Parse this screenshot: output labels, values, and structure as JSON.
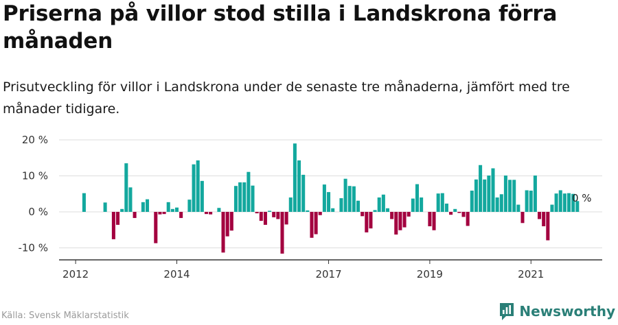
{
  "title": "Priserna på villor stod stilla i Landskrona förra månaden",
  "subtitle": "Prisutveckling för villor i Landskrona under de senaste tre månaderna, jämfört med tre månader tidigare.",
  "source": "Källa: Svensk Mäklarstatistik",
  "brand": "Newsworthy",
  "colors": {
    "positive": "#13a89e",
    "negative": "#a3003f",
    "grid": "#dddddd",
    "axis": "#333333",
    "brand": "#2a7f77"
  },
  "chart_data": {
    "type": "bar",
    "title": "Priserna på villor stod stilla i Landskrona förra månaden",
    "xlabel": "",
    "ylabel": "",
    "unit": "%",
    "start": "2011-12",
    "ylim": [
      -12,
      21
    ],
    "yticks": [
      20,
      10,
      0,
      -10
    ],
    "ytick_labels": [
      "20 %",
      "10 %",
      "0 %",
      "-10 %"
    ],
    "xticks": [
      "2012",
      "2014",
      "2017",
      "2019",
      "2021"
    ],
    "end_label": "0 %",
    "values": [
      0,
      0,
      0,
      5.2,
      0,
      0,
      0,
      0,
      2.6,
      0,
      -7.6,
      -3.6,
      0.8,
      13.5,
      6.8,
      -1.7,
      0,
      2.7,
      3.5,
      0,
      -8.7,
      -0.7,
      -0.6,
      2.7,
      0.8,
      1.2,
      -1.7,
      0,
      3.4,
      13.2,
      14.3,
      8.6,
      -0.6,
      -0.7,
      0,
      1.1,
      -11.3,
      -6.8,
      -5.2,
      7.2,
      8.2,
      8.2,
      11.1,
      7.3,
      -0.4,
      -2.5,
      -3.6,
      0.3,
      -1.5,
      -2.0,
      -11.6,
      -3.5,
      4.0,
      19.0,
      14.3,
      10.3,
      0.4,
      -7.2,
      -6.2,
      -0.9,
      7.6,
      5.5,
      1.0,
      0,
      3.8,
      9.2,
      7.2,
      7.1,
      3.1,
      -1.2,
      -5.7,
      -4.6,
      0.5,
      4.0,
      4.8,
      1.0,
      -2.0,
      -6.3,
      -5.1,
      -4.3,
      -1.3,
      3.7,
      7.7,
      4.0,
      0,
      -4.0,
      -5.1,
      5.1,
      5.2,
      2.3,
      -0.8,
      0.8,
      -0.3,
      -1.4,
      -3.9,
      5.9,
      9.0,
      13.0,
      9.0,
      10.1,
      12.1,
      4.0,
      4.9,
      10.1,
      8.9,
      8.9,
      2.0,
      -3.1,
      6.0,
      5.9,
      10.1,
      -2.0,
      -4.0,
      -7.9,
      2.0,
      5.1,
      6.0,
      5.1,
      5.2,
      5.0,
      3.0,
      0
    ]
  }
}
